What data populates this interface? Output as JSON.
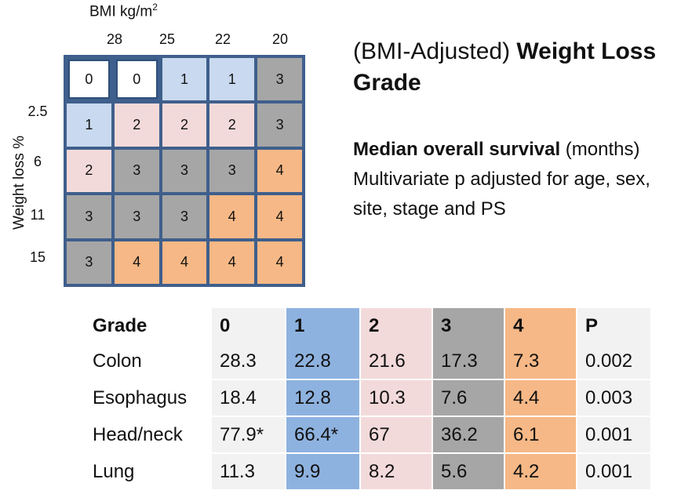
{
  "axes": {
    "bmi_label": "BMI kg/m",
    "bmi_unit_sup": "2",
    "bmi_ticks": [
      "28",
      "25",
      "22",
      "20"
    ],
    "weight_loss_label": "Weight loss %",
    "weight_loss_ticks": [
      "2.5",
      "6",
      "11",
      "15"
    ]
  },
  "grid": {
    "rows": [
      [
        "0",
        "0",
        "1",
        "1",
        "3"
      ],
      [
        "1",
        "2",
        "2",
        "2",
        "3"
      ],
      [
        "2",
        "3",
        "3",
        "3",
        "4"
      ],
      [
        "3",
        "3",
        "3",
        "4",
        "4"
      ],
      [
        "3",
        "4",
        "4",
        "4",
        "4"
      ]
    ],
    "colors": {
      "0": "#ffffff",
      "1": "#c9d9ef",
      "2": "#f3dada",
      "3": "#a6a6a6",
      "4": "#f6b886",
      "border": "#3f5f8c"
    }
  },
  "title": {
    "prefix": "(BMI-Adjusted) ",
    "bold": "Weight Loss Grade"
  },
  "subtitle": {
    "bold": "Median overall survival",
    "unit": " (months)",
    "line2": "Multivariate p adjusted for age, sex, site, stage and PS"
  },
  "table": {
    "headers": [
      "Grade",
      "0",
      "1",
      "2",
      "3",
      "4",
      "P"
    ],
    "rows": [
      [
        "Colon",
        "28.3",
        "22.8",
        "21.6",
        "17.3",
        "7.3",
        "0.002"
      ],
      [
        "Esophagus",
        "18.4",
        "12.8",
        "10.3",
        "7.6",
        "4.4",
        "0.003"
      ],
      [
        "Head/neck",
        "77.9*",
        "66.4*",
        "67",
        "36.2",
        "6.1",
        "0.001"
      ],
      [
        "Lung",
        "11.3",
        "9.9",
        "8.2",
        "5.6",
        "4.2",
        "0.001"
      ]
    ]
  }
}
